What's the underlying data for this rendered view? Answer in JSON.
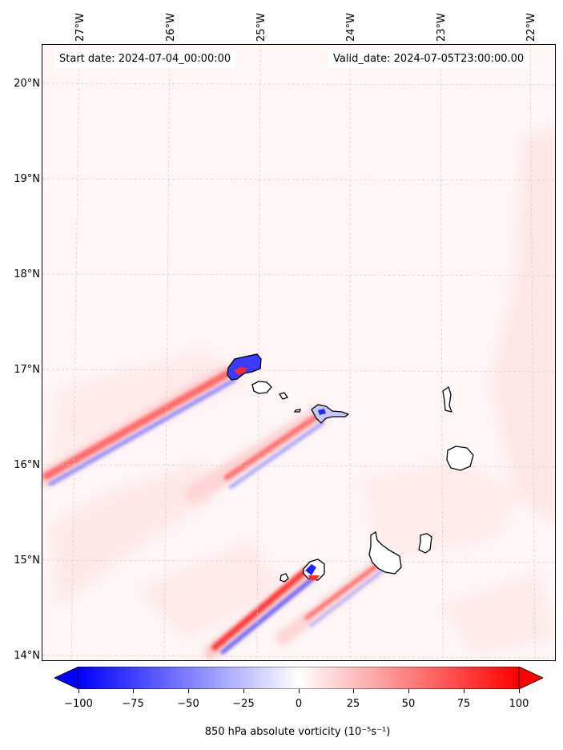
{
  "header": {
    "start_date": "Start date: 2024-07-04_00:00:00",
    "valid_date": "Valid_date: 2024-07-05T23:00:00.00"
  },
  "axes": {
    "longitude_ticks": [
      "27°W",
      "26°W",
      "25°W",
      "24°W",
      "23°W",
      "22°W"
    ],
    "latitude_ticks": [
      "20°N",
      "19°N",
      "18°N",
      "17°N",
      "16°N",
      "15°N",
      "14°N"
    ]
  },
  "colorbar": {
    "label": "850 hPa absolute vorticity (10⁻⁵s⁻¹)",
    "ticks": [
      "−100",
      "−75",
      "−50",
      "−25",
      "0",
      "25",
      "50",
      "75",
      "100"
    ],
    "range": [
      -100,
      100
    ],
    "colors": {
      "negative": "#0000ff",
      "neutral": "#ffffff",
      "positive": "#ff0000"
    }
  },
  "map": {
    "gridlines": true,
    "coastline_color": "#000000",
    "islands": [
      "Santo Antão",
      "São Vicente",
      "Santa Luzia",
      "São Nicolau",
      "Sal",
      "Boa Vista",
      "Brava",
      "Fogo",
      "Santiago",
      "Maio"
    ]
  }
}
